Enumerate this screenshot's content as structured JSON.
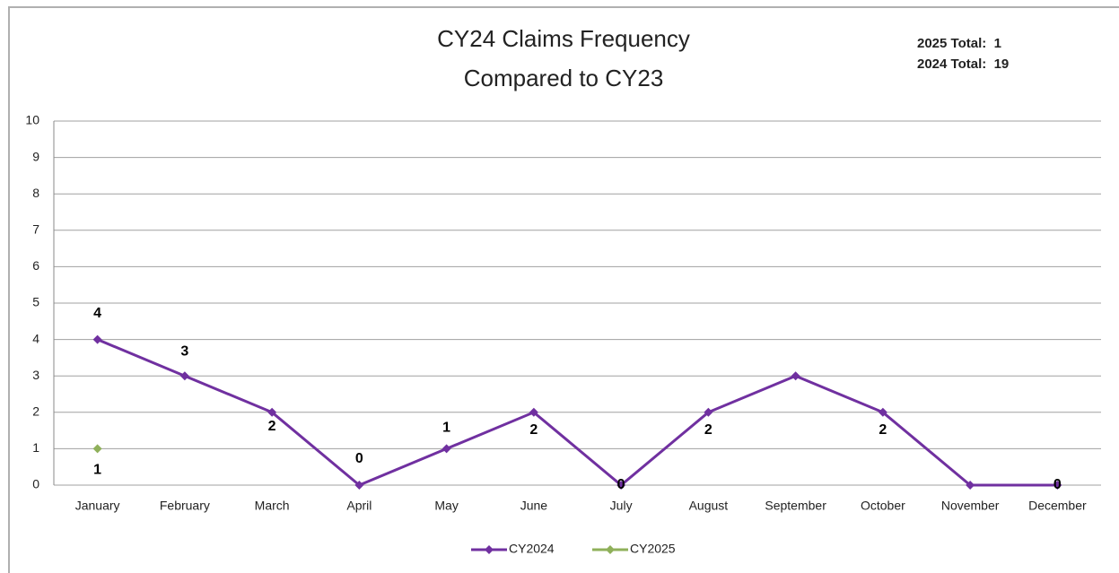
{
  "chart_data": {
    "type": "line",
    "title": [
      "CY24 Claims Frequency",
      "Compared to CY23"
    ],
    "annotations": [
      "2025 Total:  1",
      "2024 Total:  19"
    ],
    "categories": [
      "January",
      "February",
      "March",
      "April",
      "May",
      "June",
      "July",
      "August",
      "September",
      "October",
      "November",
      "December"
    ],
    "series": [
      {
        "name": "CY2024",
        "color": "#7030a0",
        "values": [
          4,
          3,
          2,
          0,
          1,
          2,
          0,
          2,
          3,
          2,
          0,
          0
        ],
        "value_labels": [
          "4",
          "3",
          "2",
          "0",
          "1",
          "2",
          "0",
          "2",
          null,
          "2",
          null,
          "0"
        ]
      },
      {
        "name": "CY2025",
        "color": "#8fb05a",
        "values": [
          1,
          null,
          null,
          null,
          null,
          null,
          null,
          null,
          null,
          null,
          null,
          null
        ],
        "value_labels": [
          "1",
          null,
          null,
          null,
          null,
          null,
          null,
          null,
          null,
          null,
          null,
          null
        ]
      }
    ],
    "ylim": [
      0,
      10
    ],
    "yticks": [
      0,
      1,
      2,
      3,
      4,
      5,
      6,
      7,
      8,
      9,
      10
    ],
    "grid": true,
    "legend": "bottom"
  }
}
